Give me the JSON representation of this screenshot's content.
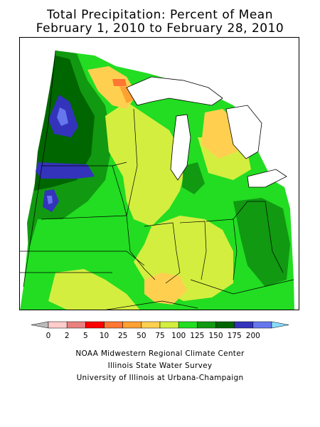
{
  "title_line1": "Total Precipitation: Percent of Mean",
  "title_line2": "February 1, 2010 to February 28, 2010",
  "legend": {
    "labels": [
      "0",
      "2",
      "5",
      "10",
      "25",
      "50",
      "75",
      "100",
      "125",
      "150",
      "175",
      "200"
    ],
    "colors": [
      "#ffcccc",
      "#e88080",
      "#ff0000",
      "#ff7733",
      "#ffa033",
      "#ffd050",
      "#d4ee40",
      "#22dd22",
      "#119911",
      "#006600",
      "#3333bb",
      "#6677ee"
    ],
    "under_color": "#bbbbbb",
    "over_color": "#88ddff"
  },
  "credits": [
    "NOAA Midwestern Regional Climate Center",
    "Illinois State Water Survey",
    "University of Illinois at Urbana-Champaign"
  ],
  "map_colors": {
    "pct_75_100": "#d4ee40",
    "pct_100_125": "#22dd22",
    "pct_125_150": "#119911",
    "pct_150_175": "#006600",
    "pct_175_200": "#3333bb",
    "pct_200_plus": "#6677ee",
    "pct_50_75": "#ffd050",
    "pct_25_50": "#ffa033",
    "pct_10_25": "#ff7733",
    "water": "#ffffff",
    "boundary": "#000000"
  }
}
